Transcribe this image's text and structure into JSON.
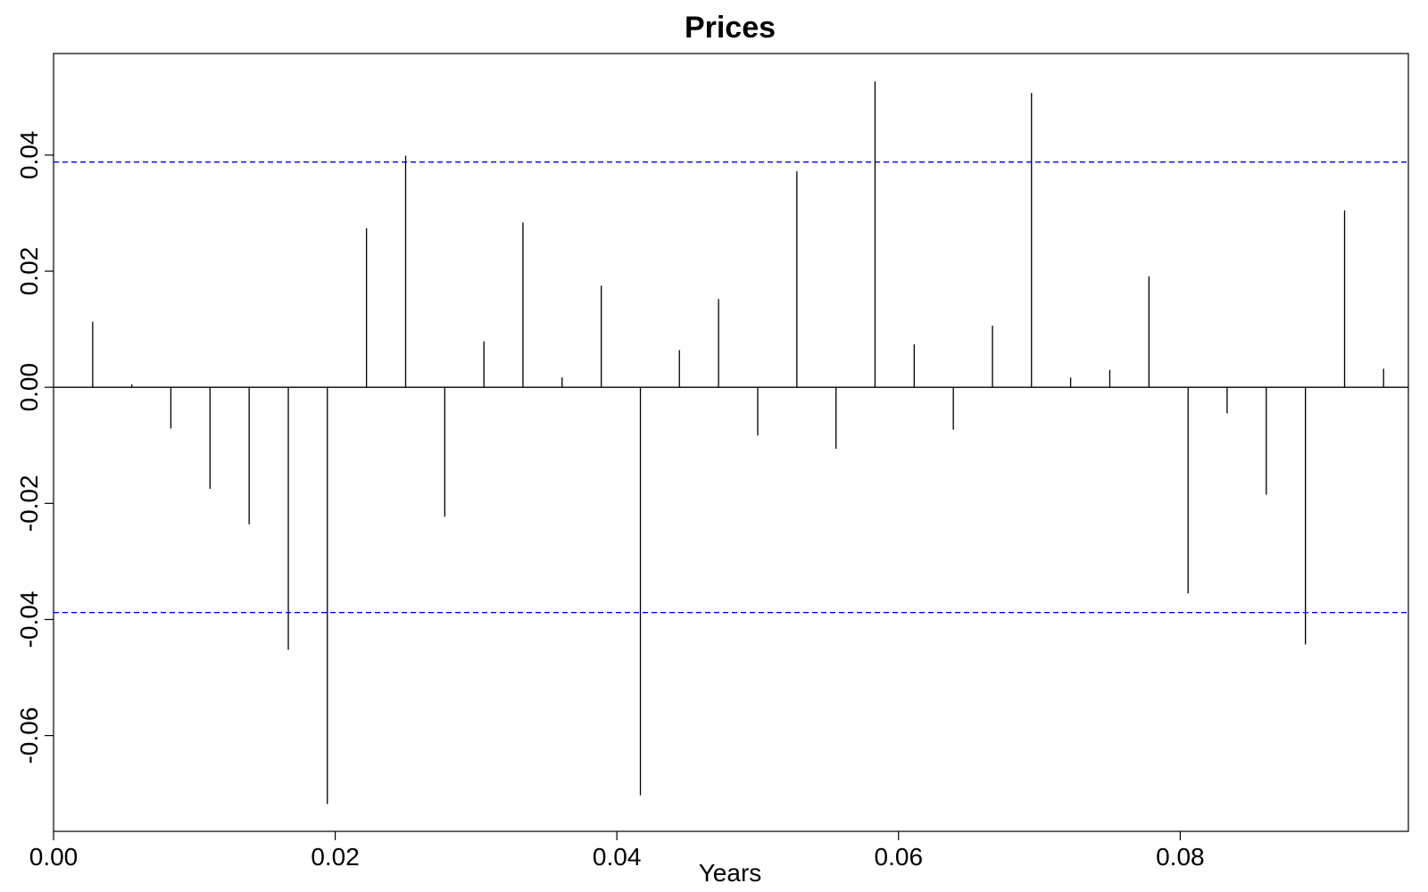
{
  "chart_data": {
    "type": "bar",
    "title": "Prices",
    "xlabel": "Years",
    "ylabel": "",
    "xlim": [
      0.0,
      0.0962
    ],
    "ylim": [
      -0.0765,
      0.0575
    ],
    "xticks": [
      0.0,
      0.02,
      0.04,
      0.06,
      0.08
    ],
    "xtick_labels": [
      "0.00",
      "0.02",
      "0.04",
      "0.06",
      "0.08"
    ],
    "yticks": [
      -0.06,
      -0.04,
      -0.02,
      0.0,
      0.02,
      0.04
    ],
    "ytick_labels": [
      "-0.06",
      "-0.04",
      "-0.02",
      "0.00",
      "0.02",
      "0.04"
    ],
    "zero_line": true,
    "confidence_bounds": {
      "values": [
        0.0388,
        -0.0388
      ],
      "color": "#0000ff",
      "style": "dashed"
    },
    "bar_color": "#000000",
    "x": [
      0.00278,
      0.00556,
      0.00833,
      0.01111,
      0.01389,
      0.01667,
      0.01944,
      0.02222,
      0.025,
      0.02778,
      0.03056,
      0.03333,
      0.03611,
      0.03889,
      0.04167,
      0.04444,
      0.04722,
      0.05,
      0.05278,
      0.05556,
      0.05833,
      0.06111,
      0.06389,
      0.06667,
      0.06944,
      0.07222,
      0.075,
      0.07778,
      0.08056,
      0.08333,
      0.08611,
      0.08889,
      0.09167,
      0.09444
    ],
    "values": [
      0.0113,
      0.0005,
      -0.0071,
      -0.0175,
      -0.0236,
      -0.0452,
      -0.0718,
      0.0274,
      0.0399,
      -0.0223,
      0.0079,
      0.0284,
      0.0017,
      0.0175,
      -0.0703,
      0.0064,
      0.0152,
      -0.0083,
      0.0372,
      -0.0106,
      0.0527,
      0.0074,
      -0.0073,
      0.0106,
      0.0507,
      0.0017,
      0.003,
      0.0191,
      -0.0355,
      -0.0045,
      -0.0185,
      -0.0443,
      0.0305,
      0.0032
    ]
  }
}
